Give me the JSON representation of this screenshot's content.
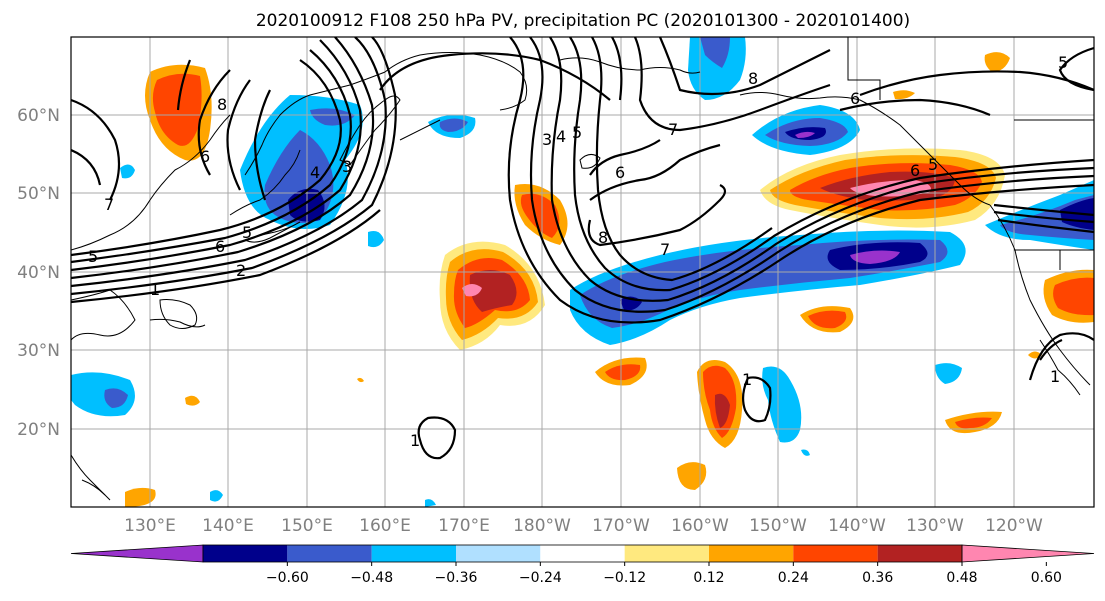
{
  "title": "2020100912 F108 250 hPa PV, precipitation PC (2020101300 - 2020101400)",
  "lat_labels": [
    "60°N",
    "50°N",
    "40°N",
    "30°N",
    "20°N"
  ],
  "lon_labels": [
    "130°E",
    "140°E",
    "150°E",
    "160°E",
    "170°E",
    "180°W",
    "170°W",
    "160°W",
    "150°W",
    "140°W",
    "130°W",
    "120°W"
  ],
  "colorbar": {
    "ticks": [
      "−0.60",
      "−0.48",
      "−0.36",
      "−0.24",
      "−0.12",
      "0.12",
      "0.24",
      "0.36",
      "0.48",
      "0.60"
    ],
    "colors": [
      "#9932cc",
      "#00008b",
      "#3a5bcc",
      "#00bfff",
      "#b0e0ff",
      "#ffffff",
      "#ffe97f",
      "#ffa500",
      "#ff4500",
      "#b22222",
      "#ff86b0"
    ]
  },
  "contour_labels": [
    "8",
    "5",
    "4",
    "3",
    "7",
    "6",
    "5",
    "6",
    "2",
    "1",
    "3",
    "4",
    "5",
    "6",
    "7",
    "6",
    "8",
    "8",
    "7",
    "6",
    "5",
    "1",
    "1",
    "1",
    "5"
  ]
}
